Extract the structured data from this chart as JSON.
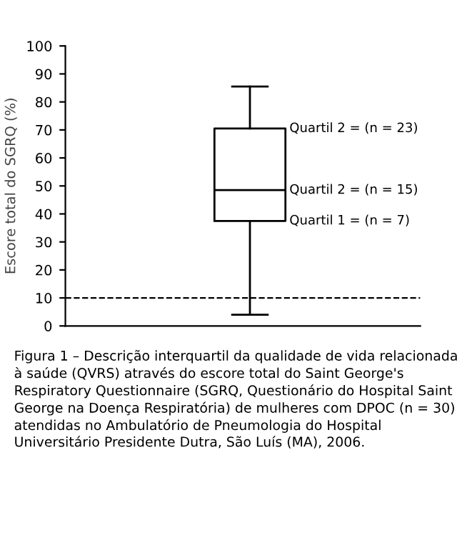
{
  "chart_data": {
    "type": "box",
    "ylabel": "Escore total do SGRQ (%)",
    "categories": [
      null
    ],
    "boxes": [
      {
        "low": 4,
        "q1": 37.5,
        "median": 48.5,
        "q3": 70.5,
        "high": 85.5
      }
    ],
    "ylim": [
      0,
      100
    ],
    "yticks": [
      0,
      10,
      20,
      30,
      40,
      50,
      60,
      70,
      80,
      90,
      100
    ],
    "tick_labels": "y",
    "ref_lines": [
      {
        "axis": "y",
        "value": 10,
        "line_style": "dashed",
        "color": "#000000"
      }
    ],
    "annotations": [
      "Quartil 2 = (n = 23)",
      "Quartil 2 = (n = 15)",
      "Quartil 1 = (n = 7)",
      "Figura 1 – Descrição interquartil da qualidade de vida relacionada à saúde (QVRS) através do escore total do Saint George's Respiratory Questionnaire (SGRQ, Questionário do Hospital Saint George na Doença Respiratória) de mulheres com DPOC (n = 30) atendidas no Ambulatório de Pneumologia do Hospital Universitário Presidente Dutra, São Luís (MA), 2006."
    ]
  }
}
